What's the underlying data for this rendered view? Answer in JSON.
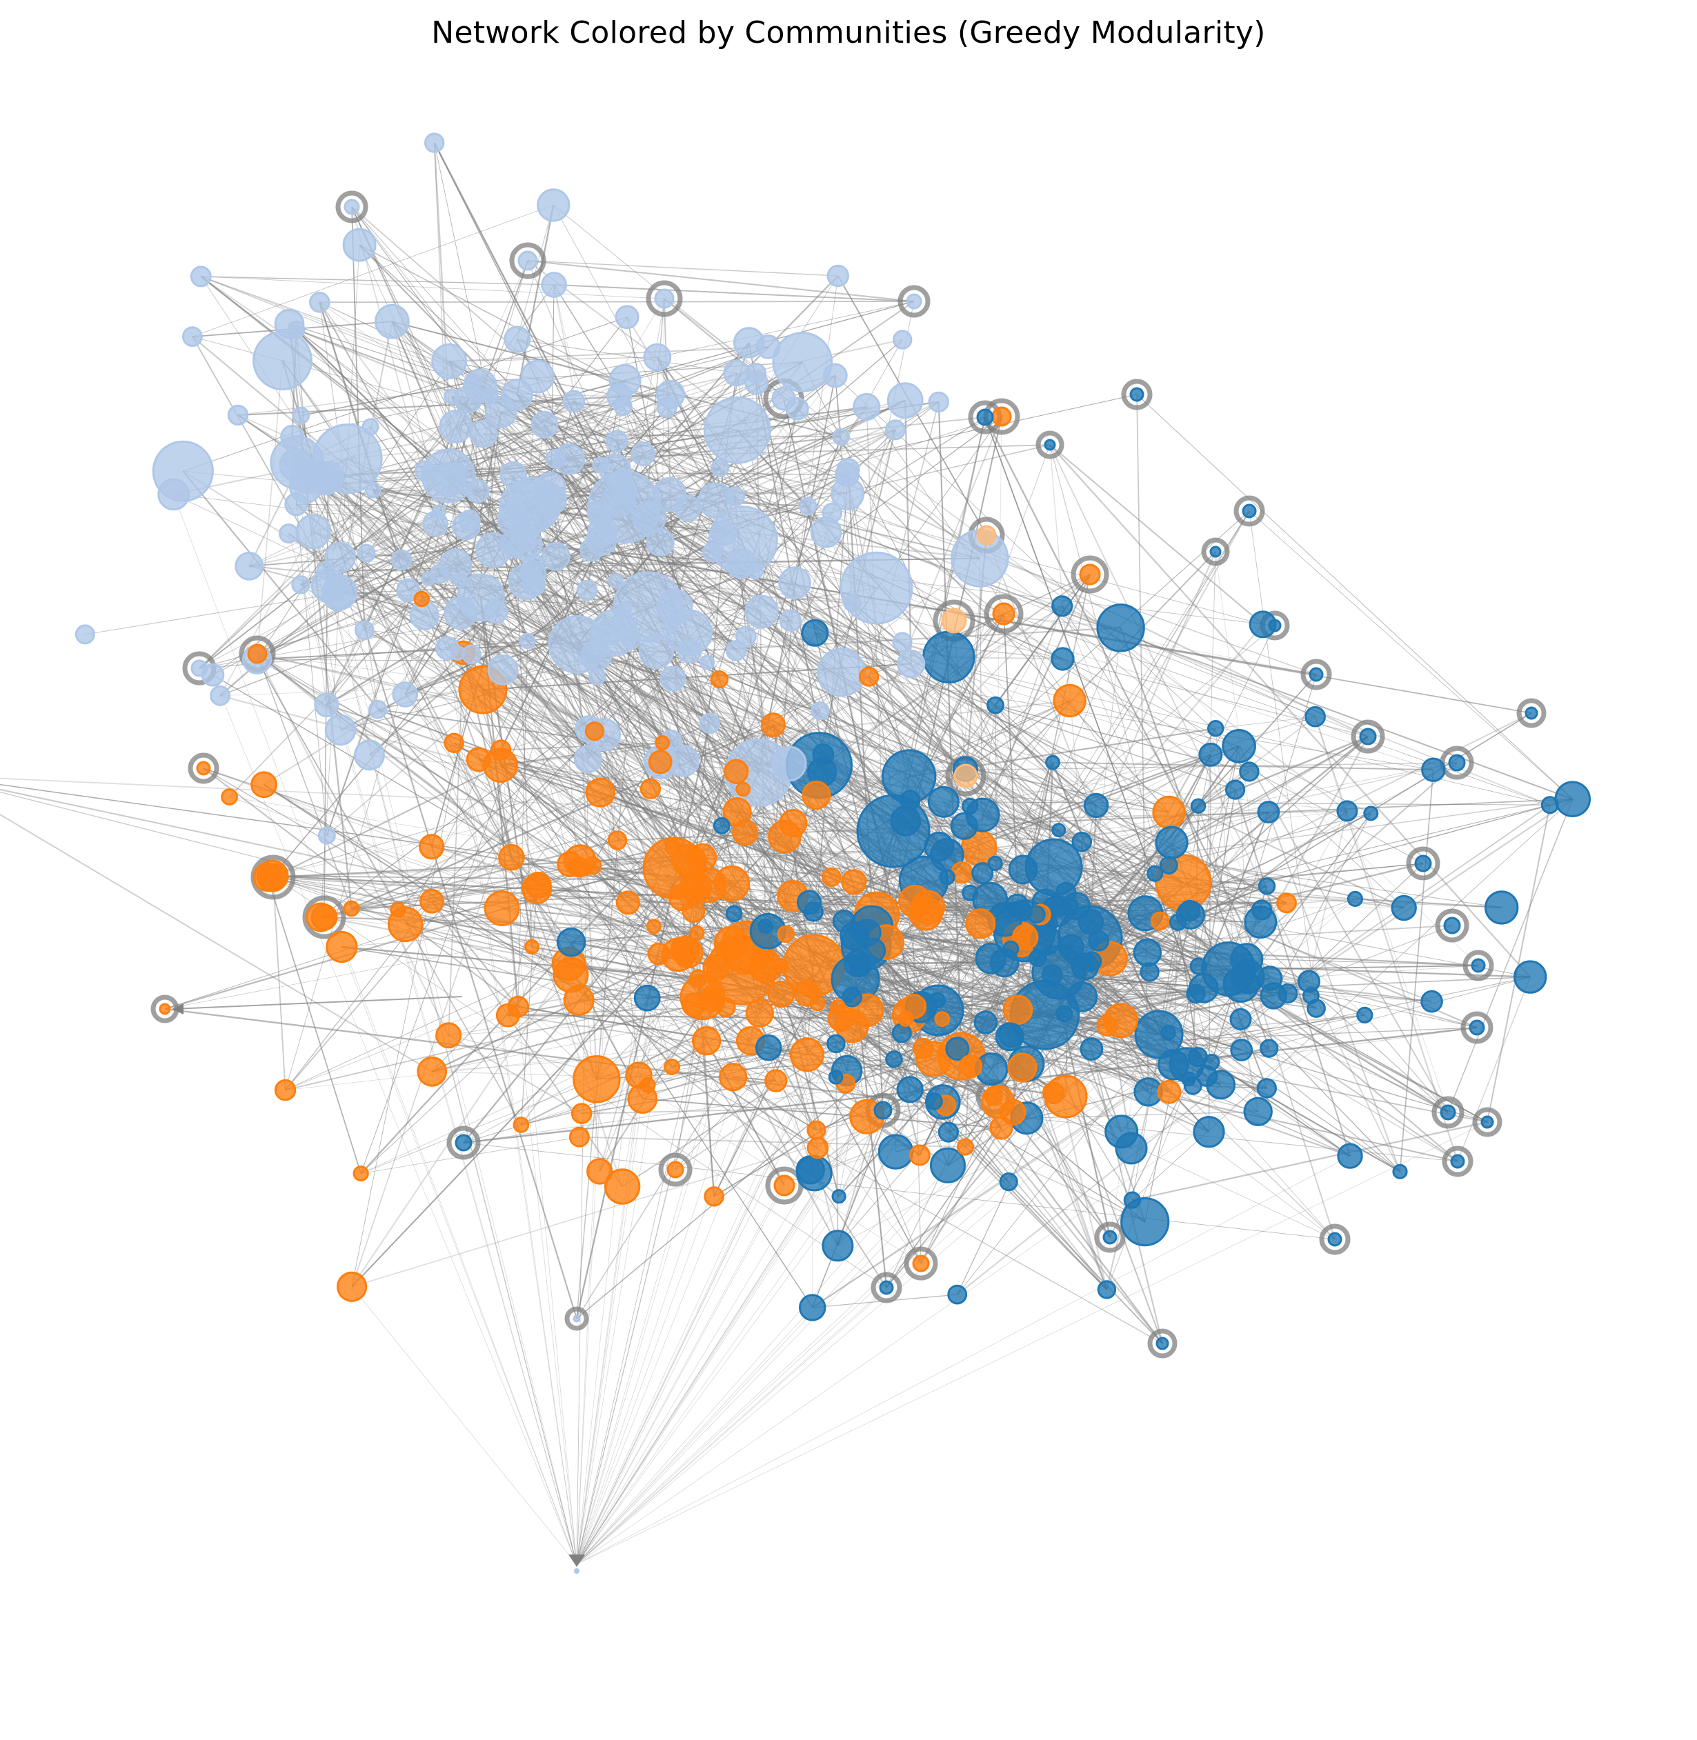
{
  "figure": {
    "title": "Network Colored by Communities (Greedy Modularity)"
  },
  "legend": null,
  "communities": [
    {
      "id": "light-blue",
      "color": "#aec7e8"
    },
    {
      "id": "orange",
      "color": "#ff7f0e"
    },
    {
      "id": "blue",
      "color": "#1f77b4"
    },
    {
      "id": "peach",
      "color": "#ffbb78"
    }
  ],
  "colors": {
    "edge": "#808080",
    "background": "#ffffff"
  }
}
